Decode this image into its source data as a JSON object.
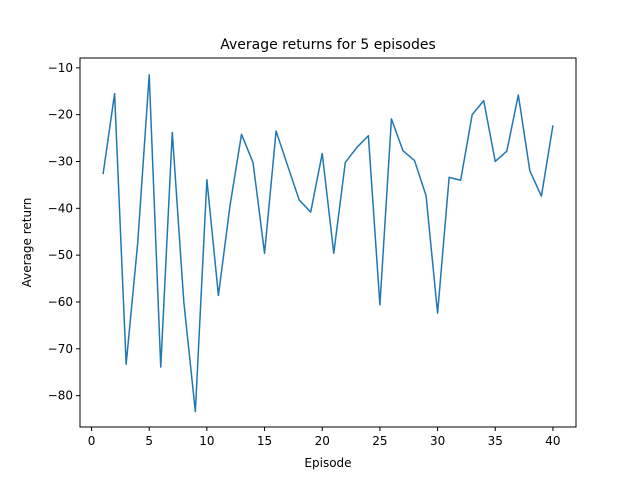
{
  "chart_data": {
    "type": "line",
    "title": "Average returns for 5 episodes",
    "xlabel": "Episode",
    "ylabel": "Average return",
    "xlim": [
      -1,
      42
    ],
    "ylim": [
      -86.7,
      -7.9
    ],
    "xticks": [
      0,
      5,
      10,
      15,
      20,
      25,
      30,
      35,
      40
    ],
    "yticks": [
      -80,
      -70,
      -60,
      -50,
      -40,
      -30,
      -20,
      -10
    ],
    "grid": false,
    "legend": "none",
    "series": [
      {
        "color": "#1f77b4",
        "x": [
          1,
          2,
          3,
          4,
          5,
          6,
          7,
          8,
          9,
          10,
          11,
          12,
          13,
          14,
          15,
          16,
          17,
          18,
          19,
          20,
          21,
          22,
          23,
          24,
          25,
          26,
          27,
          28,
          29,
          30,
          31,
          32,
          33,
          34,
          35,
          36,
          37,
          38,
          39,
          40
        ],
        "y": [
          -32.7,
          -15.5,
          -73.3,
          -47.5,
          -11.5,
          -73.9,
          -23.8,
          -60,
          -83.4,
          -33.9,
          -58.6,
          -39.5,
          -24.2,
          -30.2,
          -49.6,
          -23.5,
          -30.9,
          -38.2,
          -40.8,
          -28.3,
          -49.6,
          -30.2,
          -27.0,
          -24.5,
          -60.6,
          -20.9,
          -27.7,
          -29.8,
          -37.3,
          -62.4,
          -33.4,
          -34.0,
          -20.0,
          -17.0,
          -30.0,
          -27.8,
          -15.8,
          -32.0,
          -37.4,
          -22.3
        ]
      }
    ]
  }
}
